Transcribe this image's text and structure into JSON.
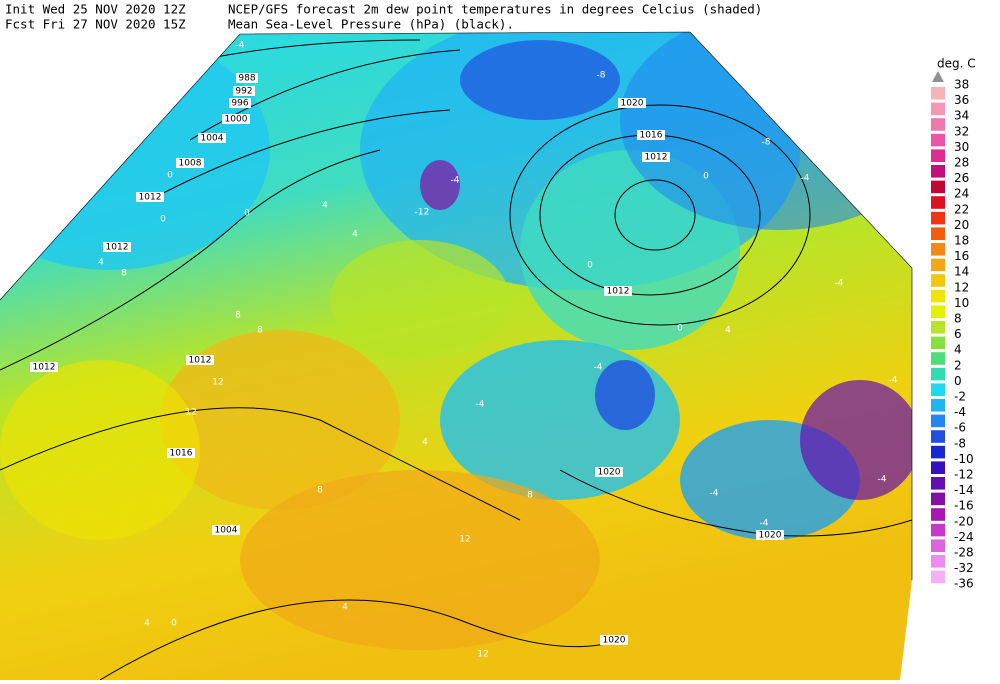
{
  "header": {
    "init": "Init  Wed 25 NOV 2020 12Z",
    "fcst": "Fcst Fri 27 NOV 2020 15Z",
    "title_line1": "NCEP/GFS forecast 2m dew point temperatures in degrees Celcius (shaded)",
    "title_line2": "Mean Sea-Level Pressure (hPa) (black)."
  },
  "legend": {
    "unit": "deg. C",
    "labels": [
      "38",
      "36",
      "34",
      "32",
      "30",
      "28",
      "26",
      "24",
      "22",
      "20",
      "18",
      "16",
      "14",
      "12",
      "10",
      "8",
      "6",
      "4",
      "2",
      "0",
      "-2",
      "-4",
      "-6",
      "-8",
      "-10",
      "-12",
      "-14",
      "-16",
      "-20",
      "-24",
      "-28",
      "-32",
      "-36"
    ],
    "colors": [
      "#f8b4b4",
      "#f498b8",
      "#f078ac",
      "#ec54a8",
      "#e02c90",
      "#c0107c",
      "#c00838",
      "#e01020",
      "#f03414",
      "#f45c10",
      "#f48818",
      "#f4a818",
      "#f0c810",
      "#f0e400",
      "#e4f000",
      "#b8e428",
      "#88e040",
      "#50dc78",
      "#30dcb0",
      "#20d8f0",
      "#20b4f4",
      "#2088f0",
      "#2050e0",
      "#1828d0",
      "#3410c0",
      "#6410b0",
      "#8410a0",
      "#a818b0",
      "#c838c8",
      "#dc64dc",
      "#ec8cec",
      "#f4b0f4"
    ]
  },
  "map": {
    "isobar_labels": [
      "988",
      "992",
      "996",
      "1000",
      "1004",
      "1008",
      "1012",
      "1012",
      "1012",
      "1012",
      "1016",
      "1004",
      "1016",
      "1012",
      "1012",
      "1020",
      "1020",
      "1020",
      "1020"
    ],
    "dewpoint_labels": [
      "-4",
      "-8",
      "-8",
      "-4",
      "-4",
      "-12",
      "-4",
      "-4",
      "-4",
      "-4",
      "-4",
      "-4",
      "-4",
      "0",
      "0",
      "0",
      "0",
      "0",
      "0",
      "4",
      "8",
      "4",
      "4",
      "8",
      "8",
      "12",
      "12",
      "12",
      "4",
      "4",
      "8",
      "4",
      "4",
      "0",
      "12",
      "8"
    ]
  }
}
